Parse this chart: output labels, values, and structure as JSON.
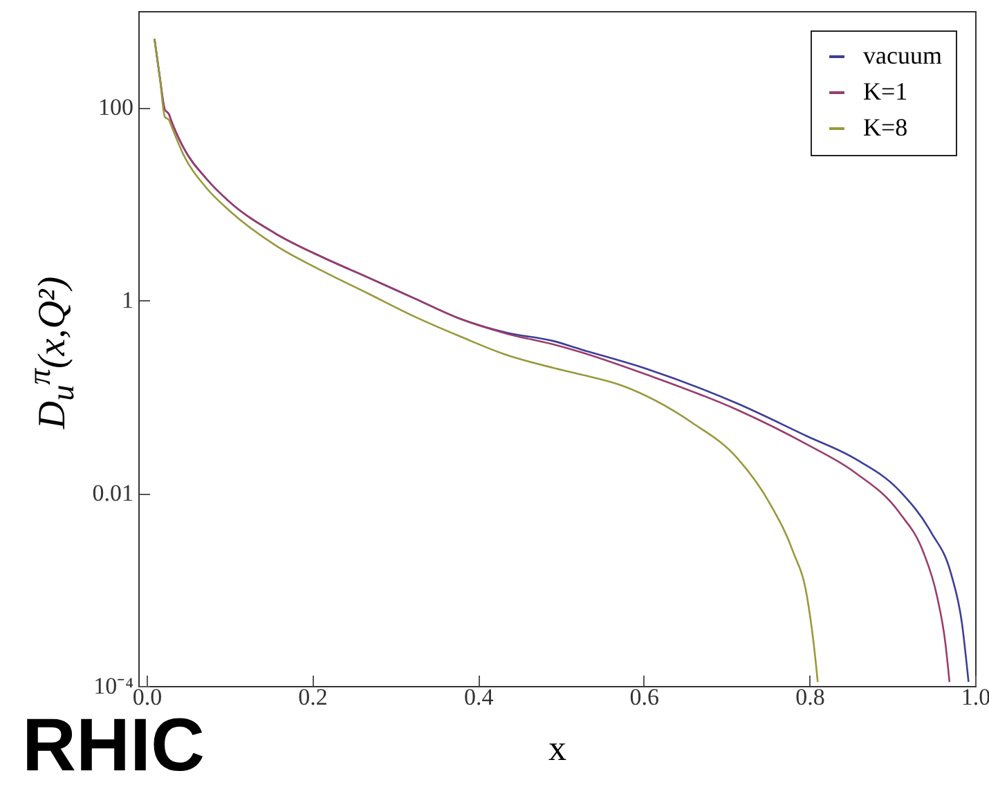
{
  "chart_data": {
    "type": "line",
    "xlabel": "x",
    "ylabel": "D$_{u}$$^{π}$(x,Q²)",
    "annotations": [
      "RHIC"
    ],
    "log": "y",
    "grid": false,
    "legend": "top right",
    "line_style": "solid",
    "xlim": [
      -0.01,
      1.0
    ],
    "xticks": [
      {
        "value": 0,
        "label": "0.0"
      },
      0.2,
      0.4,
      0.6,
      0.8,
      {
        "value": 1.0,
        "label": "1.0"
      }
    ],
    "ylim": [
      0.0001,
      1000
    ],
    "yticks": [
      {
        "value": 0.0001,
        "label": "10⁻⁴"
      },
      0.01,
      1,
      100
    ],
    "series": [
      {
        "name": "vacuum",
        "color": "#3d3d99",
        "x": [
          0.0095,
          0.016,
          0.022,
          0.027,
          0.03,
          0.044,
          0.072,
          0.1,
          0.156,
          0.211,
          0.267,
          0.323,
          0.379,
          0.435,
          0.49,
          0.524,
          0.603,
          0.713,
          0.797,
          0.854,
          0.909,
          0.947,
          0.971,
          0.984,
          0.992
        ],
        "values": [
          515,
          204,
          95,
          85,
          72,
          39,
          18.3,
          10.5,
          4.9,
          2.83,
          1.73,
          1.05,
          0.64,
          0.46,
          0.38,
          0.31,
          0.195,
          0.085,
          0.039,
          0.023,
          0.0105,
          0.0039,
          0.00145,
          0.00045,
          0.00011
        ]
      },
      {
        "name": "K=1",
        "color": "#993d6b",
        "x": [
          0.0095,
          0.016,
          0.022,
          0.027,
          0.03,
          0.044,
          0.072,
          0.1,
          0.156,
          0.211,
          0.267,
          0.323,
          0.379,
          0.435,
          0.49,
          0.524,
          0.603,
          0.713,
          0.797,
          0.854,
          0.909,
          0.937,
          0.954,
          0.964,
          0.969
        ],
        "values": [
          515,
          204,
          95,
          85,
          72,
          39,
          18.3,
          10.5,
          4.9,
          2.83,
          1.73,
          1.05,
          0.64,
          0.45,
          0.35,
          0.29,
          0.17,
          0.073,
          0.032,
          0.0166,
          0.0062,
          0.0025,
          0.00085,
          0.00028,
          0.00011
        ]
      },
      {
        "name": "K=8",
        "color": "#99993d",
        "x": [
          0.0095,
          0.016,
          0.022,
          0.027,
          0.03,
          0.044,
          0.072,
          0.1,
          0.156,
          0.211,
          0.267,
          0.323,
          0.379,
          0.435,
          0.49,
          0.524,
          0.574,
          0.658,
          0.713,
          0.753,
          0.78,
          0.797,
          0.805,
          0.81
        ],
        "values": [
          515,
          204,
          80,
          74,
          64,
          33,
          14.7,
          8.5,
          3.7,
          2.04,
          1.18,
          0.68,
          0.42,
          0.27,
          0.2,
          0.17,
          0.13,
          0.054,
          0.023,
          0.0076,
          0.0025,
          0.00085,
          0.00028,
          0.00011
        ]
      }
    ]
  }
}
